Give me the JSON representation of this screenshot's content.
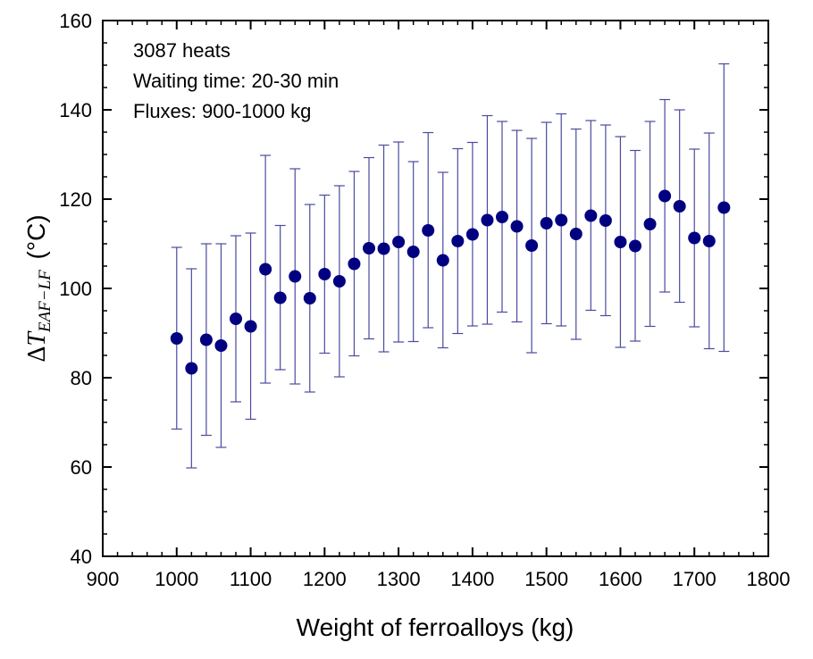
{
  "chart_data": {
    "type": "scatter",
    "title": "",
    "xlabel": "Weight of ferroalloys (kg)",
    "ylabel": {
      "prefix": "Δ",
      "var": "T",
      "subscript": "EAF−LF",
      "unit": " (°C)"
    },
    "xlim": [
      900,
      1800
    ],
    "ylim": [
      40,
      160
    ],
    "xticks": [
      900,
      1000,
      1100,
      1200,
      1300,
      1400,
      1500,
      1600,
      1700,
      1800
    ],
    "yticks": [
      40,
      60,
      80,
      100,
      120,
      140,
      160
    ],
    "x_minor_step": 20,
    "y_minor_step": 5,
    "annotations": [
      "3087 heats",
      "Waiting time: 20-30 min",
      "Fluxes: 900-1000 kg"
    ],
    "marker_color": "#000080",
    "errorbar_color": "#4a4aa0",
    "series": [
      {
        "name": "ΔT",
        "x": [
          1000,
          1020,
          1040,
          1060,
          1080,
          1100,
          1120,
          1140,
          1160,
          1180,
          1200,
          1220,
          1240,
          1260,
          1280,
          1300,
          1320,
          1340,
          1360,
          1380,
          1400,
          1420,
          1440,
          1460,
          1480,
          1500,
          1520,
          1540,
          1560,
          1580,
          1600,
          1620,
          1640,
          1660,
          1680,
          1700,
          1720,
          1740
        ],
        "y": [
          88.8,
          82.1,
          88.5,
          87.2,
          93.2,
          91.5,
          104.3,
          97.9,
          102.7,
          97.8,
          103.2,
          101.6,
          105.5,
          109.0,
          108.9,
          110.4,
          108.2,
          113.0,
          106.3,
          110.6,
          112.1,
          115.3,
          116.0,
          113.9,
          109.6,
          114.6,
          115.3,
          112.2,
          116.3,
          115.2,
          110.4,
          109.5,
          114.4,
          120.7,
          118.4,
          111.3,
          110.6,
          118.1
        ],
        "upper": [
          109.2,
          104.4,
          110.0,
          110.0,
          111.8,
          112.4,
          129.8,
          114.1,
          126.8,
          118.8,
          120.9,
          123.0,
          126.2,
          129.3,
          132.1,
          132.8,
          128.4,
          134.9,
          126.0,
          131.3,
          132.7,
          138.7,
          137.4,
          135.4,
          133.6,
          137.2,
          139.1,
          135.7,
          137.6,
          136.6,
          134.0,
          130.9,
          137.4,
          142.3,
          140.0,
          131.2,
          134.8,
          150.3
        ],
        "lower": [
          68.5,
          59.8,
          67.1,
          64.4,
          74.6,
          70.7,
          78.8,
          81.8,
          78.6,
          76.8,
          85.5,
          80.2,
          84.9,
          88.7,
          85.8,
          88.0,
          88.1,
          91.2,
          86.7,
          89.9,
          91.6,
          92.0,
          94.7,
          92.5,
          85.6,
          92.1,
          91.6,
          88.6,
          95.1,
          93.9,
          86.8,
          88.2,
          91.5,
          99.2,
          96.9,
          91.4,
          86.5,
          85.9
        ]
      }
    ]
  }
}
